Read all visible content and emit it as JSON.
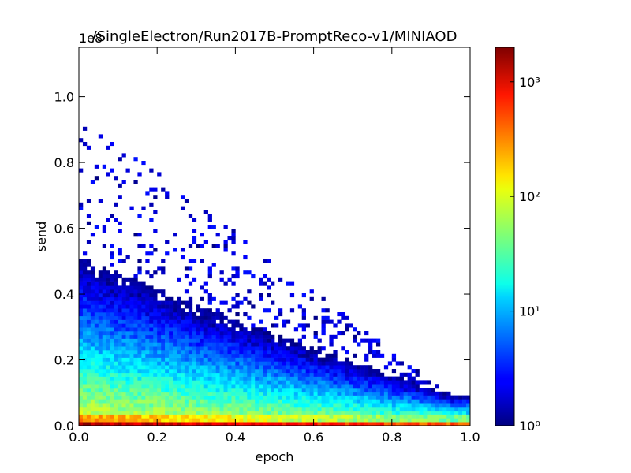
{
  "chart_data": {
    "type": "heatmap",
    "title": "/SingleElectron/Run2017B-PromptReco-v1/MINIAOD",
    "xlabel": "epoch",
    "ylabel": "send",
    "xlim": [
      0.0,
      1.0
    ],
    "ylim": [
      0.0,
      1.15
    ],
    "y_multiplier_label": "1e8",
    "x_ticks": [
      "0.0",
      "0.2",
      "0.4",
      "0.6",
      "0.8",
      "1.0"
    ],
    "y_ticks": [
      "0.0",
      "0.2",
      "0.4",
      "0.6",
      "0.8",
      "1.0"
    ],
    "colorbar": {
      "scale": "log",
      "range": [
        1,
        2000
      ],
      "colormap": "jet",
      "tick_labels": [
        {
          "value": 1,
          "label": "10⁰"
        },
        {
          "value": 10,
          "label": "10¹"
        },
        {
          "value": 100,
          "label": "10²"
        },
        {
          "value": 1000,
          "label": "10³"
        }
      ]
    },
    "bins": {
      "x_bins": 100,
      "y_bins": 100
    },
    "density_profile": [
      {
        "y_range": [
          0.0,
          0.01
        ],
        "count": 1500
      },
      {
        "y_range": [
          0.01,
          0.03
        ],
        "count": 300
      },
      {
        "y_range": [
          0.03,
          0.1
        ],
        "count": 90
      },
      {
        "y_range": [
          0.1,
          0.2
        ],
        "count": 25
      },
      {
        "y_range": [
          0.2,
          0.35
        ],
        "count": 6
      },
      {
        "y_range": [
          0.35,
          0.6
        ],
        "count": 2
      },
      {
        "y_range": [
          0.6,
          1.15
        ],
        "count": 1
      }
    ],
    "grid": false
  }
}
